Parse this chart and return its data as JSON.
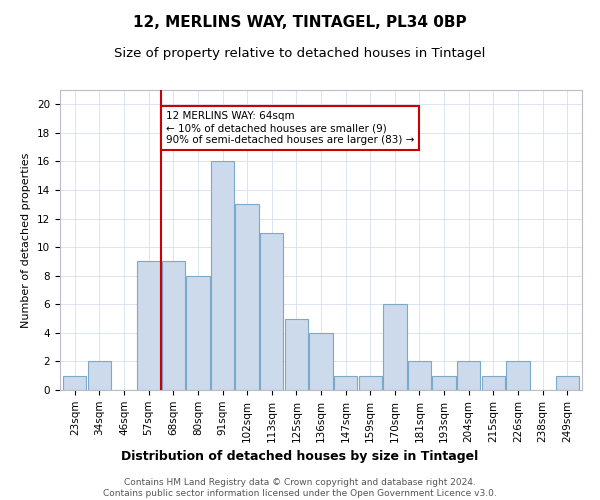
{
  "title1": "12, MERLINS WAY, TINTAGEL, PL34 0BP",
  "title2": "Size of property relative to detached houses in Tintagel",
  "xlabel": "Distribution of detached houses by size in Tintagel",
  "ylabel": "Number of detached properties",
  "categories": [
    "23sqm",
    "34sqm",
    "46sqm",
    "57sqm",
    "68sqm",
    "80sqm",
    "91sqm",
    "102sqm",
    "113sqm",
    "125sqm",
    "136sqm",
    "147sqm",
    "159sqm",
    "170sqm",
    "181sqm",
    "193sqm",
    "204sqm",
    "215sqm",
    "226sqm",
    "238sqm",
    "249sqm"
  ],
  "values": [
    1,
    2,
    0,
    9,
    9,
    8,
    16,
    13,
    11,
    5,
    4,
    1,
    1,
    6,
    2,
    1,
    2,
    1,
    2,
    0,
    1
  ],
  "bar_color": "#ccdaeb",
  "bar_edge_color": "#7aaac8",
  "vline_x_index": 3.5,
  "vline_color": "#cc0000",
  "annotation_text": "12 MERLINS WAY: 64sqm\n← 10% of detached houses are smaller (9)\n90% of semi-detached houses are larger (83) →",
  "annotation_box_color": "white",
  "annotation_box_edge_color": "#cc0000",
  "ylim": [
    0,
    21
  ],
  "yticks": [
    0,
    2,
    4,
    6,
    8,
    10,
    12,
    14,
    16,
    18,
    20
  ],
  "grid_color": "#d5dff0",
  "footer1": "Contains HM Land Registry data © Crown copyright and database right 2024.",
  "footer2": "Contains public sector information licensed under the Open Government Licence v3.0.",
  "title1_fontsize": 11,
  "title2_fontsize": 9.5,
  "xlabel_fontsize": 9,
  "ylabel_fontsize": 8,
  "tick_fontsize": 7.5,
  "annotation_fontsize": 7.5,
  "footer_fontsize": 6.5
}
